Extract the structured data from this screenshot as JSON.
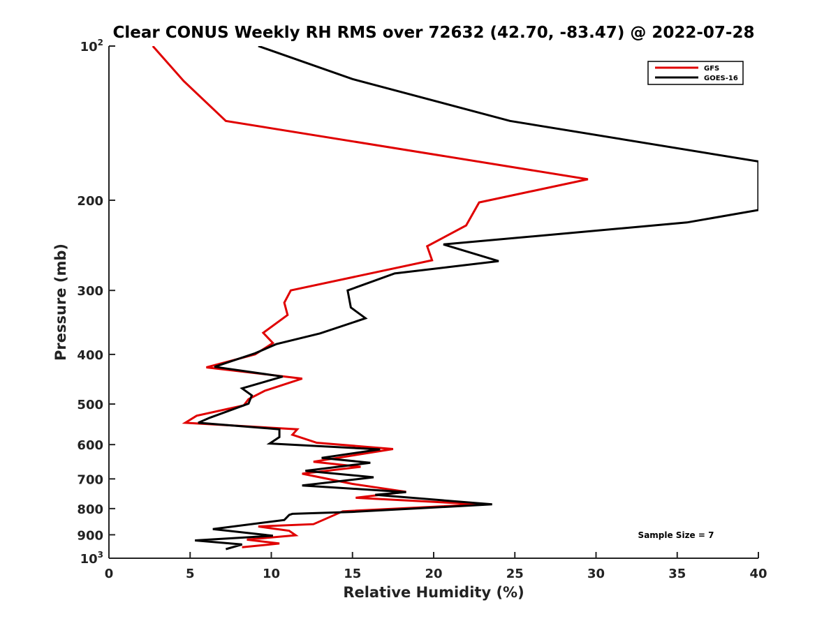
{
  "chart_data": {
    "type": "line",
    "title": "Clear CONUS Weekly RH RMS over 72632 (42.70, -83.47) @ 2022-07-28",
    "xlabel": "Relative Humidity (%)",
    "ylabel": "Pressure (mb)",
    "xlim": [
      0,
      40
    ],
    "ylim": [
      100,
      1000
    ],
    "y_scale": "log",
    "y_reversed": true,
    "x_ticks": [
      "0",
      "5",
      "10",
      "15",
      "20",
      "25",
      "30",
      "35",
      "40"
    ],
    "y_ticks": [
      {
        "value": 100,
        "base": "10",
        "exp": "2"
      },
      {
        "value": 200,
        "base": "200",
        "exp": ""
      },
      {
        "value": 300,
        "base": "300",
        "exp": ""
      },
      {
        "value": 400,
        "base": "400",
        "exp": ""
      },
      {
        "value": 500,
        "base": "500",
        "exp": ""
      },
      {
        "value": 600,
        "base": "600",
        "exp": ""
      },
      {
        "value": 700,
        "base": "700",
        "exp": ""
      },
      {
        "value": 800,
        "base": "800",
        "exp": ""
      },
      {
        "value": 900,
        "base": "900",
        "exp": ""
      },
      {
        "value": 1000,
        "base": "10",
        "exp": "3"
      }
    ],
    "grid": false,
    "legend_position": "top-right",
    "annotation": "Sample Size = 7",
    "series": [
      {
        "name": "GFS",
        "color": "#e00000",
        "points": [
          [
            2.7,
            100
          ],
          [
            4.6,
            117
          ],
          [
            7.2,
            140
          ],
          [
            29.5,
            182
          ],
          [
            22.8,
            202
          ],
          [
            22.0,
            224
          ],
          [
            19.6,
            246
          ],
          [
            19.9,
            262
          ],
          [
            11.2,
            300
          ],
          [
            10.8,
            317
          ],
          [
            11.0,
            335
          ],
          [
            9.5,
            363
          ],
          [
            10.1,
            380
          ],
          [
            9.0,
            400
          ],
          [
            6.0,
            424
          ],
          [
            11.9,
            446
          ],
          [
            9.6,
            471
          ],
          [
            8.6,
            489
          ],
          [
            8.3,
            503
          ],
          [
            5.4,
            527
          ],
          [
            4.7,
            544
          ],
          [
            11.6,
            560
          ],
          [
            11.3,
            574
          ],
          [
            12.8,
            595
          ],
          [
            17.5,
            612
          ],
          [
            12.6,
            648
          ],
          [
            15.5,
            663
          ],
          [
            11.9,
            684
          ],
          [
            15.0,
            716
          ],
          [
            18.3,
            742
          ],
          [
            15.2,
            762
          ],
          [
            22.9,
            785
          ],
          [
            14.4,
            810
          ],
          [
            12.6,
            858
          ],
          [
            9.2,
            867
          ],
          [
            11.1,
            884
          ],
          [
            11.5,
            902
          ],
          [
            8.5,
            920
          ],
          [
            10.5,
            936
          ],
          [
            8.2,
            952
          ]
        ]
      },
      {
        "name": "GOES-16",
        "color": "#000000",
        "points": [
          [
            9.2,
            100
          ],
          [
            15.0,
            116
          ],
          [
            24.7,
            140
          ],
          [
            40.0,
            168
          ],
          [
            40.0,
            209
          ],
          [
            35.6,
            221
          ],
          [
            20.6,
            244
          ],
          [
            24.0,
            263
          ],
          [
            17.6,
            278
          ],
          [
            14.7,
            300
          ],
          [
            14.9,
            324
          ],
          [
            15.8,
            340
          ],
          [
            13.0,
            364
          ],
          [
            10.3,
            382
          ],
          [
            9.0,
            398
          ],
          [
            6.5,
            423
          ],
          [
            10.7,
            442
          ],
          [
            8.2,
            466
          ],
          [
            8.8,
            481
          ],
          [
            8.6,
            499
          ],
          [
            6.2,
            532
          ],
          [
            5.5,
            544
          ],
          [
            10.5,
            560
          ],
          [
            10.5,
            580
          ],
          [
            9.9,
            597
          ],
          [
            16.7,
            613
          ],
          [
            13.1,
            637
          ],
          [
            16.1,
            651
          ],
          [
            12.1,
            675
          ],
          [
            16.3,
            695
          ],
          [
            11.9,
            721
          ],
          [
            18.3,
            743
          ],
          [
            16.4,
            752
          ],
          [
            23.6,
            785
          ],
          [
            15.0,
            812
          ],
          [
            11.3,
            819
          ],
          [
            11.1,
            823
          ],
          [
            10.8,
            842
          ],
          [
            6.4,
            877
          ],
          [
            10.1,
            904
          ],
          [
            5.3,
            923
          ],
          [
            8.2,
            940
          ],
          [
            7.2,
            960
          ]
        ]
      }
    ]
  }
}
